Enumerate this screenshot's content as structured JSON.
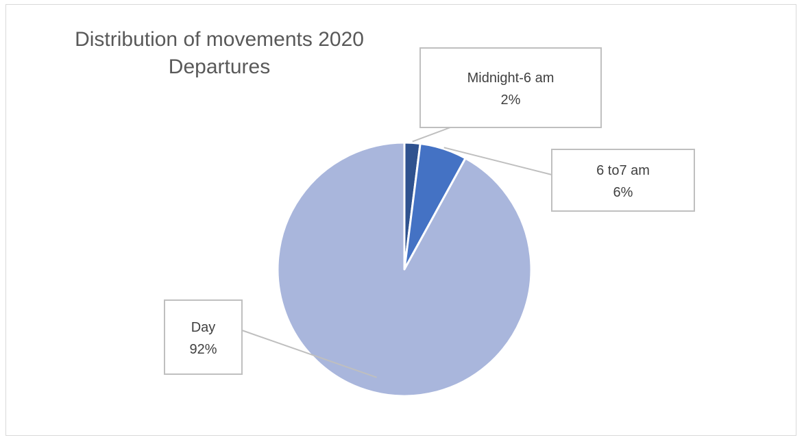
{
  "chart_data": {
    "type": "pie",
    "title": "Distribution of movements 2020",
    "subtitle": "Departures",
    "categories": [
      "Midnight-6 am",
      "6 to7 am",
      "Day"
    ],
    "values": [
      2,
      6,
      92
    ],
    "labels": [
      "2%",
      "6%",
      "92%"
    ],
    "colors": [
      "#2f528f",
      "#4472c4",
      "#a9b6dc"
    ]
  }
}
